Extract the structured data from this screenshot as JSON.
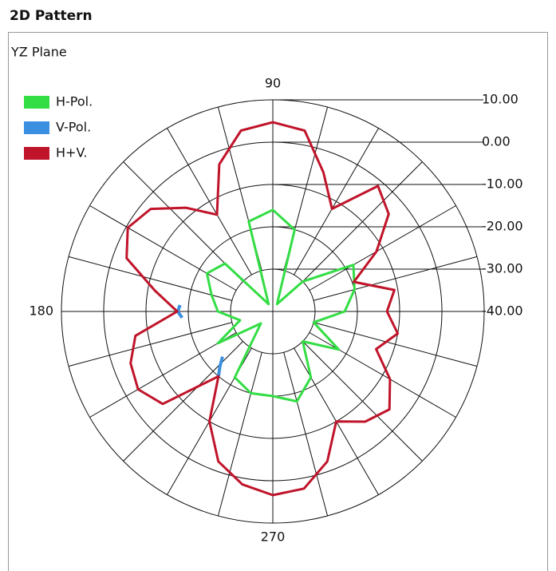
{
  "header": {
    "title": "2D Pattern"
  },
  "chart_data": {
    "type": "polar",
    "title": "YZ Plane",
    "rlim": [
      -40,
      10
    ],
    "rticks": [
      {
        "value": -40,
        "label": "-40.00"
      },
      {
        "value": -30,
        "label": "-30.00"
      },
      {
        "value": -20,
        "label": "-20.00"
      },
      {
        "value": -10,
        "label": "-10.00"
      },
      {
        "value": 0,
        "label": "0.00"
      },
      {
        "value": 10,
        "label": "10.00"
      }
    ],
    "theta_grid": [
      0,
      15,
      30,
      45,
      60,
      75,
      90,
      105,
      120,
      135,
      150,
      165,
      180,
      195,
      210,
      225,
      240,
      255,
      270,
      285,
      300,
      315,
      330,
      345
    ],
    "theta_labels": [
      90,
      180,
      270
    ],
    "legend": "top-left",
    "series": [
      {
        "name": "H-Pol.",
        "color": "#33dd44",
        "angles": [
          0,
          15,
          30,
          45,
          60,
          75,
          90,
          105,
          120,
          135,
          150,
          165,
          180,
          195,
          210,
          225,
          240,
          255,
          270,
          285,
          300,
          315,
          330,
          345
        ],
        "values": [
          -23,
          -20,
          -18,
          -30,
          -38,
          -20,
          -16,
          -18,
          -38,
          -24,
          -22,
          -25,
          -27,
          -32,
          -25,
          -36,
          -22,
          -20,
          -20,
          -18,
          -22,
          -30,
          -22,
          -30
        ]
      },
      {
        "name": "V-Pol.",
        "color": "#3a8fe0",
        "angles": [
          176,
          180,
          184,
          200,
          222,
          226,
          230
        ],
        "values": [
          -18,
          -17.5,
          -18.5,
          null,
          -24,
          -22,
          -20
        ]
      },
      {
        "name": "H+V.",
        "color": "#c0142a",
        "angles": [
          0,
          10,
          20,
          30,
          40,
          50,
          60,
          70,
          80,
          90,
          100,
          110,
          120,
          130,
          140,
          150,
          160,
          170,
          180,
          190,
          200,
          210,
          220,
          230,
          240,
          250,
          260,
          270,
          280,
          290,
          300,
          310,
          320,
          330,
          340,
          350
        ],
        "values": [
          -13,
          -10.8,
          -19.6,
          -11.7,
          -4.2,
          -1.3,
          -12,
          -5,
          3.4,
          4.7,
          3.4,
          -3,
          -13.6,
          -8,
          -2.3,
          -0.4,
          -3.2,
          -11.7,
          -17.4,
          -7,
          -4.2,
          -3.2,
          -6,
          -20,
          -10,
          -2.3,
          1.5,
          3.4,
          2.5,
          -2.3,
          -10,
          -6,
          -4,
          -8,
          -14,
          -10
        ]
      }
    ]
  }
}
